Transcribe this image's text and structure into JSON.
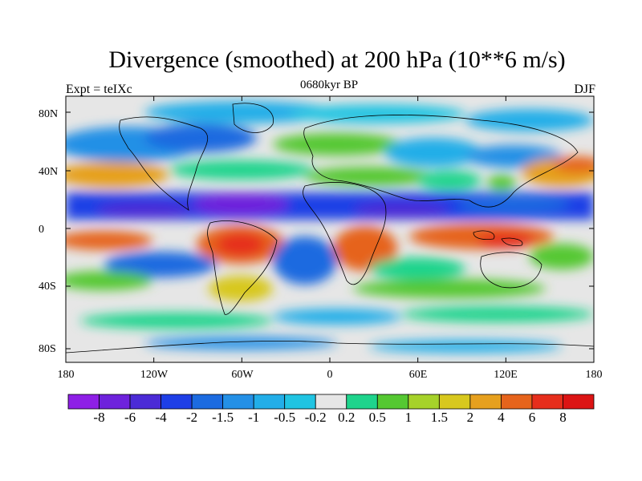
{
  "title": "Divergence (smoothed) at 200 hPa (10**6 m/s)",
  "experiment_label": "Expt = teIXc",
  "period_label": "0680kyr BP",
  "season_label": "DJF",
  "y_tick_labels": [
    "80N",
    "40N",
    "0",
    "40S",
    "80S"
  ],
  "x_tick_labels": [
    "180",
    "120W",
    "60W",
    "0",
    "60E",
    "120E",
    "180"
  ],
  "colorbar": {
    "labels": [
      "-8",
      "-6",
      "-4",
      "-2",
      "-1.5",
      "-1",
      "-0.5",
      "-0.2",
      "0.2",
      "0.5",
      "1",
      "1.5",
      "2",
      "4",
      "6",
      "8"
    ],
    "colors": [
      "#8e1fe6",
      "#6e22dc",
      "#4b2bd6",
      "#1e3fe6",
      "#1c6be0",
      "#2490e6",
      "#22aee8",
      "#20c4e2",
      "#e6e6e6",
      "#1ed48c",
      "#55c832",
      "#a6d22a",
      "#d8c81e",
      "#e6a01e",
      "#e6641c",
      "#e62e1c",
      "#dc1414"
    ]
  },
  "colors": {
    "neutral": "#e6e6e6",
    "coast": "#000000"
  }
}
